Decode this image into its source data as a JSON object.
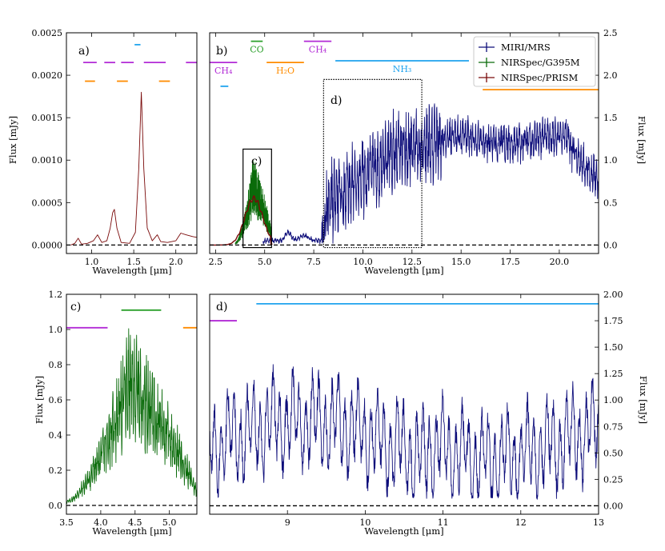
{
  "figure": {
    "background": "#ffffff"
  },
  "colors": {
    "miri": "#0d0d7a",
    "g395m": "#0a6b0a",
    "prism": "#7a0a0a",
    "co": "#2ca02c",
    "h2o": "#ff8c00",
    "ch4": "#b22bd6",
    "nh3": "#1fa3ee"
  },
  "chart_data": [
    {
      "id": "a",
      "type": "line",
      "panel_label": "a)",
      "xlabel": "Wavelength [μm]",
      "ylabel": "Flux [mJy]",
      "xlim": [
        0.7,
        2.25
      ],
      "ylim": [
        -0.0001,
        0.0025
      ],
      "xticks": [
        1.0,
        1.5,
        2.0
      ],
      "xticklabels": [
        "1.0",
        "1.5",
        "2.0"
      ],
      "yticks": [
        0.0,
        0.0005,
        0.001,
        0.0015,
        0.002,
        0.0025
      ],
      "yticklabels": [
        "0.0000",
        "0.0005",
        "0.0010",
        "0.0015",
        "0.0020",
        "0.0025"
      ],
      "zero_line": true,
      "series": [
        {
          "name": "NIRSpec/PRISM",
          "color_key": "prism",
          "points": [
            [
              0.75,
              0.0
            ],
            [
              0.8,
              2e-05
            ],
            [
              0.84,
              8e-05
            ],
            [
              0.88,
              1e-05
            ],
            [
              0.95,
              2e-05
            ],
            [
              1.02,
              5e-05
            ],
            [
              1.07,
              0.00012
            ],
            [
              1.12,
              3e-05
            ],
            [
              1.18,
              5e-05
            ],
            [
              1.22,
              0.0002
            ],
            [
              1.25,
              0.00038
            ],
            [
              1.27,
              0.00042
            ],
            [
              1.3,
              0.0002
            ],
            [
              1.35,
              3e-05
            ],
            [
              1.45,
              2e-05
            ],
            [
              1.52,
              0.00015
            ],
            [
              1.56,
              0.0009
            ],
            [
              1.59,
              0.0018
            ],
            [
              1.62,
              0.0009
            ],
            [
              1.66,
              0.0002
            ],
            [
              1.72,
              5e-05
            ],
            [
              1.78,
              0.00012
            ],
            [
              1.82,
              4e-05
            ],
            [
              1.9,
              3e-05
            ],
            [
              2.0,
              5e-05
            ],
            [
              2.06,
              0.00014
            ],
            [
              2.12,
              0.00012
            ],
            [
              2.2,
              0.0001
            ],
            [
              2.25,
              9e-05
            ]
          ]
        }
      ],
      "molecule_bands": [
        {
          "label": "",
          "color_key": "ch4",
          "x": [
            0.9,
            1.06
          ],
          "y": 0.00215
        },
        {
          "label": "",
          "color_key": "ch4",
          "x": [
            1.15,
            1.28
          ],
          "y": 0.00215
        },
        {
          "label": "",
          "color_key": "ch4",
          "x": [
            1.35,
            1.5
          ],
          "y": 0.00215
        },
        {
          "label": "",
          "color_key": "ch4",
          "x": [
            1.62,
            1.88
          ],
          "y": 0.00215
        },
        {
          "label": "",
          "color_key": "ch4",
          "x": [
            2.12,
            2.25
          ],
          "y": 0.00215
        },
        {
          "label": "",
          "color_key": "h2o",
          "x": [
            0.92,
            1.04
          ],
          "y": 0.00193
        },
        {
          "label": "",
          "color_key": "h2o",
          "x": [
            1.3,
            1.43
          ],
          "y": 0.00193
        },
        {
          "label": "",
          "color_key": "h2o",
          "x": [
            1.8,
            1.93
          ],
          "y": 0.00193
        },
        {
          "label": "",
          "color_key": "nh3",
          "x": [
            1.51,
            1.58
          ],
          "y": 0.00236
        }
      ]
    },
    {
      "id": "b",
      "type": "line",
      "panel_label": "b)",
      "xlabel": "Wavelength [μm]",
      "ylabel_right": "Flux [mJy]",
      "xlim": [
        2.2,
        22.0
      ],
      "ylim": [
        -0.1,
        2.5
      ],
      "xticks": [
        2.5,
        5.0,
        7.5,
        10.0,
        12.5,
        15.0,
        17.5,
        20.0
      ],
      "xticklabels": [
        "2.5",
        "5.0",
        "7.5",
        "10.0",
        "12.5",
        "15.0",
        "17.5",
        "20.0"
      ],
      "yticks": [
        0.0,
        0.5,
        1.0,
        1.5,
        2.0,
        2.5
      ],
      "yticklabels": [
        "0.0",
        "0.5",
        "1.0",
        "1.5",
        "2.0",
        "2.5"
      ],
      "zero_line": true,
      "legend": {
        "location": "top-right",
        "entries": [
          {
            "label": "MIRI/MRS",
            "color_key": "miri"
          },
          {
            "label": "NIRSpec/G395M",
            "color_key": "g395m"
          },
          {
            "label": "NIRSpec/PRISM",
            "color_key": "prism"
          }
        ]
      },
      "zoom_boxes": [
        {
          "label": "c)",
          "x": [
            3.9,
            5.35
          ],
          "y": [
            -0.03,
            1.13
          ],
          "style": "solid"
        },
        {
          "label": "d)",
          "x": [
            8.0,
            13.0
          ],
          "y": [
            -0.03,
            1.95
          ],
          "style": "dotted"
        }
      ],
      "molecule_bands": [
        {
          "label": "CO",
          "color_key": "co",
          "x": [
            4.3,
            4.9
          ],
          "y": 2.4
        },
        {
          "label": "H₂O",
          "color_key": "h2o",
          "x": [
            5.1,
            7.0
          ],
          "y": 2.15
        },
        {
          "label": "CH₄",
          "color_key": "ch4",
          "x": [
            7.0,
            8.4
          ],
          "y": 2.4
        },
        {
          "label": "CH₄",
          "color_key": "ch4",
          "x": [
            2.2,
            3.6
          ],
          "y": 2.15
        },
        {
          "label": "",
          "color_key": "nh3",
          "x": [
            2.75,
            3.15
          ],
          "y": 1.87
        },
        {
          "label": "NH₃",
          "color_key": "nh3",
          "x": [
            8.6,
            15.4
          ],
          "y": 2.17
        },
        {
          "label": "",
          "color_key": "h2o",
          "x": [
            16.1,
            22.0
          ],
          "y": 1.83
        }
      ],
      "series": [
        {
          "name": "MIRI/MRS",
          "color_key": "miri",
          "kind": "miri_full",
          "range": [
            4.9,
            22.0
          ]
        },
        {
          "name": "NIRSpec/G395M",
          "color_key": "g395m",
          "kind": "g395m",
          "range": [
            3.5,
            5.35
          ]
        },
        {
          "name": "NIRSpec/PRISM",
          "color_key": "prism",
          "kind": "prism_b",
          "range": [
            2.2,
            5.4
          ]
        }
      ]
    },
    {
      "id": "c",
      "type": "line",
      "panel_label": "c)",
      "xlabel": "Wavelength [μm]",
      "ylabel": "Flux [mJy]",
      "xlim": [
        3.5,
        5.4
      ],
      "ylim": [
        -0.05,
        1.2
      ],
      "xticks": [
        3.5,
        4.0,
        4.5,
        5.0
      ],
      "xticklabels": [
        "3.5",
        "4.0",
        "4.5",
        "5.0"
      ],
      "yticks": [
        0.0,
        0.2,
        0.4,
        0.6,
        0.8,
        1.0,
        1.2
      ],
      "yticklabels": [
        "0.0",
        "0.2",
        "0.4",
        "0.6",
        "0.8",
        "1.0",
        "1.2"
      ],
      "zero_line": true,
      "molecule_bands": [
        {
          "label": "",
          "color_key": "ch4",
          "x": [
            3.5,
            4.1
          ],
          "y": 1.01
        },
        {
          "label": "",
          "color_key": "co",
          "x": [
            4.3,
            4.88
          ],
          "y": 1.11
        },
        {
          "label": "",
          "color_key": "h2o",
          "x": [
            5.2,
            5.4
          ],
          "y": 1.01
        }
      ],
      "series": [
        {
          "name": "NIRSpec/G395M",
          "color_key": "g395m",
          "kind": "g395m",
          "range": [
            3.5,
            5.4
          ]
        }
      ]
    },
    {
      "id": "d",
      "type": "line",
      "panel_label": "d)",
      "xlabel": "Wavelength [μm]",
      "ylabel_right": "Flux [mJy]",
      "xlim": [
        8.0,
        13.0
      ],
      "ylim": [
        -0.08,
        2.0
      ],
      "xticks": [
        9,
        10,
        11,
        12,
        13
      ],
      "xticklabels": [
        "9",
        "10",
        "11",
        "12",
        "13"
      ],
      "yticks": [
        0.0,
        0.25,
        0.5,
        0.75,
        1.0,
        1.25,
        1.5,
        1.75,
        2.0
      ],
      "yticklabels": [
        "0.00",
        "0.25",
        "0.50",
        "0.75",
        "1.00",
        "1.25",
        "1.50",
        "1.75",
        "2.00"
      ],
      "zero_line": true,
      "molecule_bands": [
        {
          "label": "",
          "color_key": "ch4",
          "x": [
            8.0,
            8.35
          ],
          "y": 1.75
        },
        {
          "label": "",
          "color_key": "nh3",
          "x": [
            8.6,
            13.0
          ],
          "y": 1.91
        }
      ],
      "series": [
        {
          "name": "MIRI/MRS",
          "color_key": "miri",
          "kind": "miri_zoom",
          "range": [
            8.0,
            13.0
          ]
        }
      ]
    }
  ]
}
